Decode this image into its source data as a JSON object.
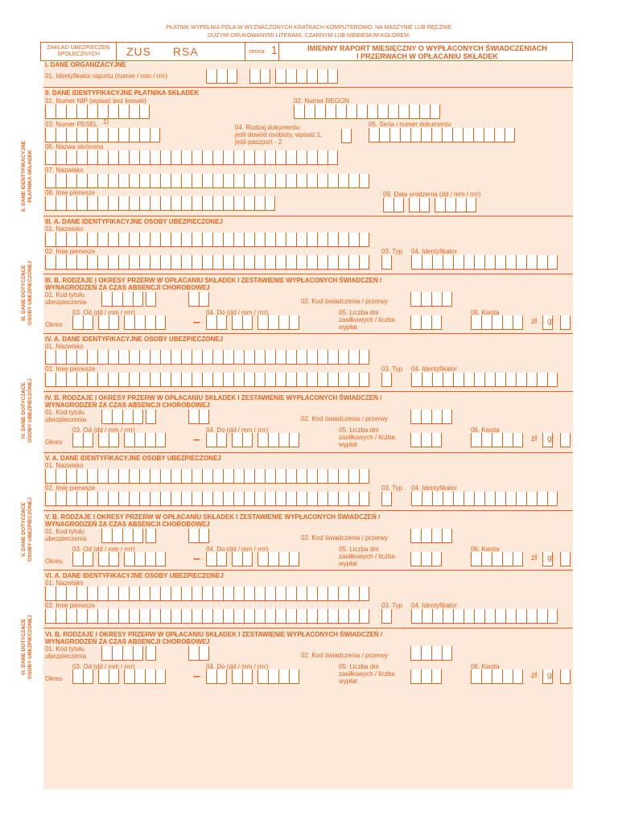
{
  "top_note": [
    "PŁATNIK WYPEŁNIA POLA W WYZNACZONYCH KRATKACH KOMPUTEROWO, NA MASZYNIE LUB RĘCZNIE",
    "DUŻYMI DRUKOWANYMI LITERAMI, CZARNYM LUB NIEBIESKIM KOLOREM."
  ],
  "header": {
    "zaklad": [
      "ZAKŁAD UBEZPIECZEŃ",
      "SPOŁECZNYCH"
    ],
    "zus": "ZUS",
    "rsa": "RSA",
    "strona_label": "strona:",
    "strona_value": "1",
    "title": [
      "IMIENNY RAPORT MIESIĘCZNY O WYPŁACONYCH ŚWIADCZENIACH",
      "I PRZERWACH W OPŁACANIU SKŁADEK"
    ]
  },
  "section_I": {
    "title": "I. DANE ORGANIZACYJNE",
    "f01": "01. Identyfikator raportu (numer / mm / rrrr)"
  },
  "section_II": {
    "side": [
      "II. DANE IDENTYFIKACYJNE",
      "PŁATNIKA SKŁADEK"
    ],
    "title": "II. DANE IDENTYFIKACYJNE PŁATNIKA SKŁADEK",
    "f01": "01. Numer NIP (wpisać bez kresek)",
    "f02": "02. Numer REGON",
    "f03": "03. Numer PESEL",
    "f03_sup": "1)",
    "f04": [
      "04. Rodzaj dokumentu:",
      "jeśli dowód osobisty, wpisać 1,",
      "jeśli paszport - 2"
    ],
    "f05": "05. Seria i numer dokumentu",
    "f06": "06. Nazwa skrócona",
    "f07": "07. Nazwisko",
    "f08": "08. Imię pierwsze",
    "f09": "09. Data urodzenia (dd / mm / rrrr)"
  },
  "persons": [
    {
      "side": [
        "III. DANE DOTYCZĄCE",
        "OSOBY UBEZPIECZONEJ"
      ],
      "a_title": "III. A. DANE IDENTYFIKACYJNE OSOBY UBEZPIECZONEJ",
      "b_title": [
        "III. B. RODZAJE I OKRESY PRZERW W OPŁACANIU SKŁADEK I ZESTAWIENIE WYPŁACONYCH ŚWIADCZEŃ /",
        "WYNAGRODZEŃ ZA CZAS ABSENCJI CHOROBOWEJ"
      ]
    },
    {
      "side": [
        "IV. DANE DOTYCZĄCE",
        "OSOBY UBEZPIECZONEJ"
      ],
      "a_title": "IV. A. DANE IDENTYFIKACYJNE OSOBY UBEZPIECZONEJ",
      "b_title": [
        "IV. B. RODZAJE I OKRESY PRZERW W OPŁACANIU SKŁADEK I ZESTAWIENIE WYPŁACONYCH ŚWIADCZEŃ /",
        "WYNAGRODZEŃ ZA CZAS ABSENCJI CHOROBOWEJ"
      ]
    },
    {
      "side": [
        "V. DANE DOTYCZĄCE",
        "OSOBY UBEZPIECZONEJ"
      ],
      "a_title": "V. A. DANE IDENTYFIKACYJNE OSOBY UBEZPIECZONEJ",
      "b_title": [
        "V. B. RODZAJE I OKRESY PRZERW W OPŁACANIU SKŁADEK I ZESTAWIENIE WYPŁACONYCH ŚWIADCZEŃ /",
        "WYNAGRODZEŃ ZA CZAS ABSENCJI CHOROBOWEJ"
      ]
    },
    {
      "side": [
        "VI. DANE DOTYCZĄCE",
        "OSOBY UBEZPIECZONEJ"
      ],
      "a_title": "VI. A. DANE IDENTYFIKACYJNE OSOBY UBEZPIECZONEJ",
      "b_title": [
        "VI. B. RODZAJE I OKRESY PRZERW W OPŁACANIU SKŁADEK I ZESTAWIENIE WYPŁACONYCH ŚWIADCZEŃ /",
        "WYNAGRODZEŃ ZA CZAS ABSENCJI CHOROBOWEJ"
      ]
    }
  ],
  "person_fields": {
    "nazwisko": "01. Nazwisko",
    "imie": "02. Imię pierwsze",
    "typ": "03. Typ",
    "identyfikator": "04. Identyfikator",
    "kod_tytulu": [
      "01. Kod tytułu",
      "ubezpieczenia"
    ],
    "kod_swiadczenia": "02. Kod świadczenia / przerwy",
    "od": "03. Od (dd / mm / rrrr)",
    "do": "04. Do (dd / mm / rrrr)",
    "okres": "Okres",
    "dash": "–",
    "liczba": [
      "05. Liczba dni",
      "zasiłkowych / liczba",
      "wypłat"
    ],
    "kwota": "06. Kwota",
    "zl": "zł",
    "gr": "gr"
  }
}
